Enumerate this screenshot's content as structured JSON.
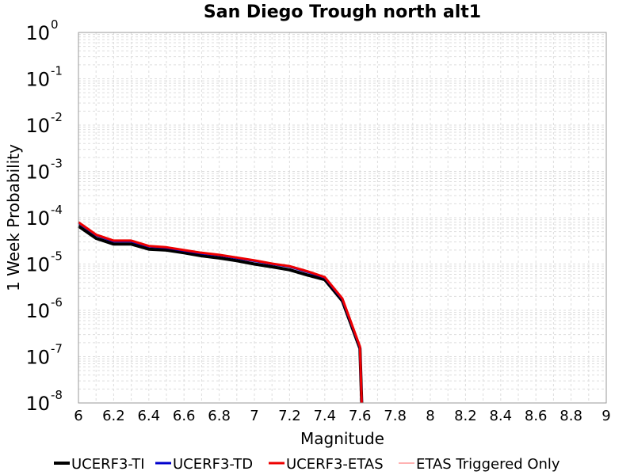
{
  "chart_data": {
    "type": "line",
    "title": "San Diego Trough north alt1",
    "xlabel": "Magnitude",
    "ylabel": "1 Week Probability",
    "xlim": [
      6,
      9
    ],
    "ylim": [
      1e-08,
      1
    ],
    "yscale": "log",
    "grid": true,
    "legend_position": "bottom",
    "xticks": [
      "6",
      "6.2",
      "6.4",
      "6.6",
      "6.8",
      "7",
      "7.2",
      "7.4",
      "7.6",
      "7.8",
      "8",
      "8.2",
      "8.4",
      "8.6",
      "8.8",
      "9"
    ],
    "yticks": [
      {
        "base": "10",
        "exp": "0"
      },
      {
        "base": "10",
        "exp": "-1"
      },
      {
        "base": "10",
        "exp": "-2"
      },
      {
        "base": "10",
        "exp": "-3"
      },
      {
        "base": "10",
        "exp": "-4"
      },
      {
        "base": "10",
        "exp": "-5"
      },
      {
        "base": "10",
        "exp": "-6"
      },
      {
        "base": "10",
        "exp": "-7"
      },
      {
        "base": "10",
        "exp": "-8"
      }
    ],
    "series": [
      {
        "name": "UCERF3-TI",
        "color": "#000000",
        "x": [
          6.0,
          6.1,
          6.2,
          6.3,
          6.4,
          6.5,
          6.6,
          6.7,
          6.8,
          6.9,
          7.0,
          7.1,
          7.2,
          7.3,
          7.4,
          7.5,
          7.6,
          7.61
        ],
        "y": [
          6.6e-05,
          3.6e-05,
          2.7e-05,
          2.7e-05,
          2.1e-05,
          2e-05,
          1.75e-05,
          1.5e-05,
          1.35e-05,
          1.18e-05,
          1e-05,
          8.7e-06,
          7.5e-06,
          5.8e-06,
          4.6e-06,
          1.6e-06,
          1.5e-07,
          1e-08
        ]
      },
      {
        "name": "UCERF3-TD",
        "color": "#0000cc",
        "x": [
          6.0,
          6.1,
          6.2,
          6.3,
          6.4,
          6.5,
          6.6,
          6.7,
          6.8,
          6.9,
          7.0,
          7.1,
          7.2,
          7.3,
          7.4,
          7.5,
          7.6,
          7.61
        ],
        "y": [
          7.8e-05,
          4.2e-05,
          3.1e-05,
          3.1e-05,
          2.4e-05,
          2.25e-05,
          1.95e-05,
          1.7e-05,
          1.55e-05,
          1.35e-05,
          1.17e-05,
          1e-05,
          8.8e-06,
          6.8e-06,
          5.1e-06,
          1.75e-06,
          1.6e-07,
          1e-08
        ]
      },
      {
        "name": "UCERF3-ETAS",
        "color": "#ee0000",
        "x": [
          6.0,
          6.1,
          6.2,
          6.3,
          6.4,
          6.5,
          6.6,
          6.7,
          6.8,
          6.9,
          7.0,
          7.1,
          7.2,
          7.3,
          7.4,
          7.5,
          7.6,
          7.61
        ],
        "y": [
          8e-05,
          4.3e-05,
          3.2e-05,
          3.2e-05,
          2.45e-05,
          2.3e-05,
          2e-05,
          1.75e-05,
          1.58e-05,
          1.38e-05,
          1.2e-05,
          1.02e-05,
          9e-06,
          7e-06,
          5.2e-06,
          1.8e-06,
          1.65e-07,
          1e-08
        ]
      },
      {
        "name": "ETAS Triggered Only",
        "color": "#ff6666",
        "x": [],
        "y": []
      }
    ]
  }
}
